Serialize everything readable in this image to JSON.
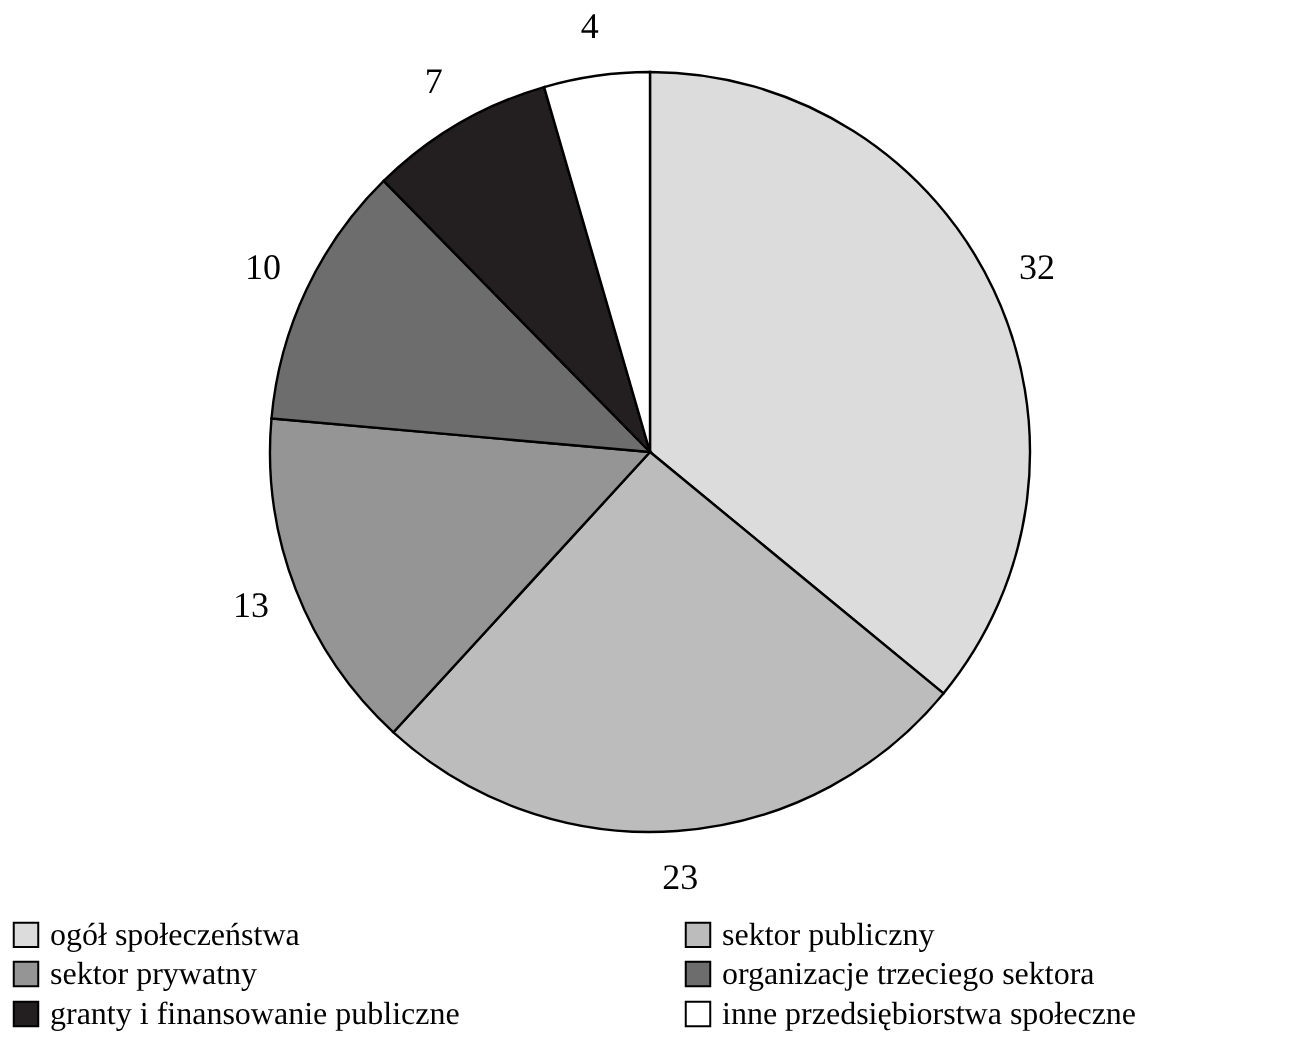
{
  "chart_data": {
    "type": "pie",
    "categories": [
      "ogół społeczeństwa",
      "sektor publiczny",
      "sektor prywatny",
      "organizacje trzeciego sektora",
      "granty i finansowanie publiczne",
      "inne przedsiębiorstwa społeczne"
    ],
    "values": [
      32,
      23,
      13,
      10,
      7,
      4
    ],
    "colors": [
      "#dcdcdc",
      "#bcbcbc",
      "#959595",
      "#6d6d6d",
      "#231f20",
      "#ffffff"
    ],
    "data_labels": true,
    "legend": "bottom"
  }
}
